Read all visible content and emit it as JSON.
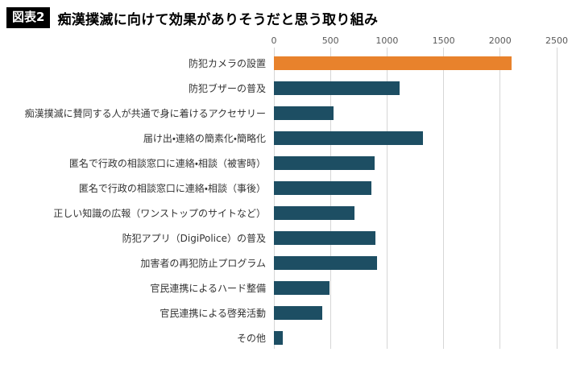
{
  "header": {
    "badge": "図表2",
    "title": "痴漢撲滅に向けて効果がありそうだと思う取り組み"
  },
  "chart_data": {
    "type": "bar",
    "orientation": "horizontal",
    "title": "痴漢撲滅に向けて効果がありそうだと思う取り組み",
    "xlabel": "",
    "ylabel": "",
    "xlim": [
      0,
      2500
    ],
    "x_ticks": [
      0,
      500,
      1000,
      1500,
      2000,
      2500
    ],
    "axis_position": "top",
    "grid": true,
    "legend": false,
    "categories": [
      "防犯カメラの設置",
      "防犯ブザーの普及",
      "痴漢撲滅に賛同する人が共通で身に着けるアクセサリー",
      "届け出・連絡の簡素化・簡略化",
      "匿名で行政の相談窓口に連絡・相談（被害時）",
      "匿名で行政の相談窓口に連絡・相談（事後）",
      "正しい知識の広報（ワンストップのサイトなど）",
      "防犯アプリ（DigiPolice）の普及",
      "加害者の再犯防止プログラム",
      "官民連携によるハード整備",
      "官民連携による啓発活動",
      "その他"
    ],
    "values": [
      2100,
      1110,
      530,
      1320,
      890,
      860,
      710,
      900,
      910,
      490,
      430,
      80
    ],
    "highlight_index": 0,
    "colors": {
      "highlight": "#e8822c",
      "default": "#1d4e63",
      "gridline": "#d6d6d6",
      "tick_text": "#595959",
      "label_text": "#333333"
    }
  }
}
